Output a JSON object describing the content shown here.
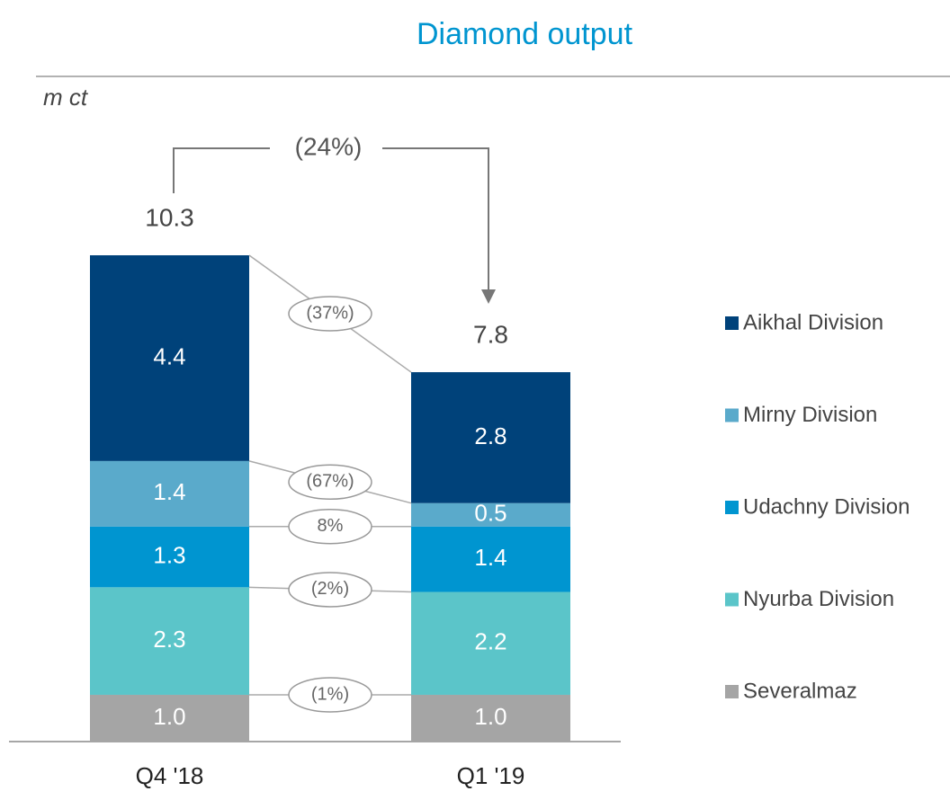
{
  "chart_data": {
    "type": "bar",
    "stacked": true,
    "title": "Diamond output",
    "y_label": "m ct",
    "categories": [
      "Q4 '18",
      "Q1 '19"
    ],
    "totals": [
      10.3,
      7.8
    ],
    "total_change": "(24%)",
    "series": [
      {
        "name": "Severalmaz",
        "color": "#a5a5a5",
        "values": [
          1.0,
          1.0
        ],
        "value_labels": [
          "1.0",
          "1.0"
        ],
        "change": "(1%)"
      },
      {
        "name": "Nyurba Division",
        "color": "#5bc5c9",
        "values": [
          2.3,
          2.2
        ],
        "change": "(2%)"
      },
      {
        "name": "Udachny Division",
        "color": "#0095d0",
        "values": [
          1.3,
          1.4
        ],
        "change": "8%"
      },
      {
        "name": "Mirny Division",
        "color": "#5aaacb",
        "values": [
          1.4,
          0.5
        ],
        "change": "(67%)"
      },
      {
        "name": "Aikhal Division",
        "color": "#00427a",
        "values": [
          4.4,
          2.8
        ],
        "change": "(37%)"
      }
    ]
  }
}
